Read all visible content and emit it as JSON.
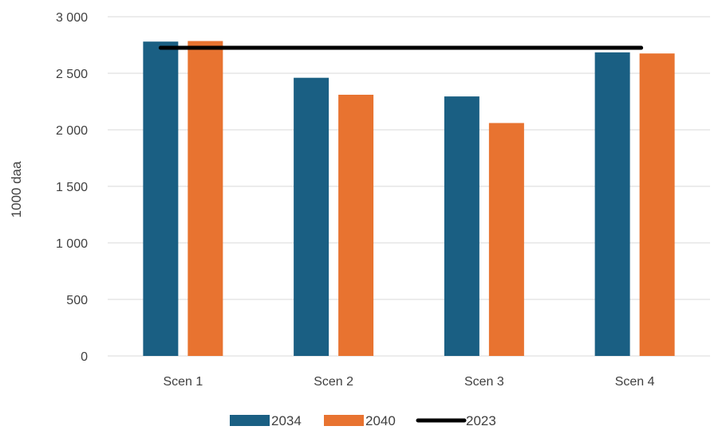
{
  "chart_data": {
    "type": "bar",
    "categories": [
      "Scen 1",
      "Scen 2",
      "Scen 3",
      "Scen 4"
    ],
    "series": [
      {
        "name": "2034",
        "type": "bar",
        "color": "#1a5f83",
        "values": [
          2780,
          2460,
          2295,
          2685
        ]
      },
      {
        "name": "2040",
        "type": "bar",
        "color": "#e87330",
        "values": [
          2785,
          2310,
          2060,
          2675
        ]
      },
      {
        "name": "2023",
        "type": "line",
        "color": "#000000",
        "values": [
          2725,
          2725,
          2725,
          2725
        ]
      }
    ],
    "ylabel": "1000 daa",
    "ylim": [
      0,
      3000
    ],
    "yticks": [
      0,
      500,
      1000,
      1500,
      2000,
      2500,
      3000
    ],
    "ytick_labels": [
      "0",
      "500",
      "1 000",
      "1 500",
      "2 000",
      "2 500",
      "3 000"
    ],
    "grid": true,
    "legend_position": "bottom"
  }
}
